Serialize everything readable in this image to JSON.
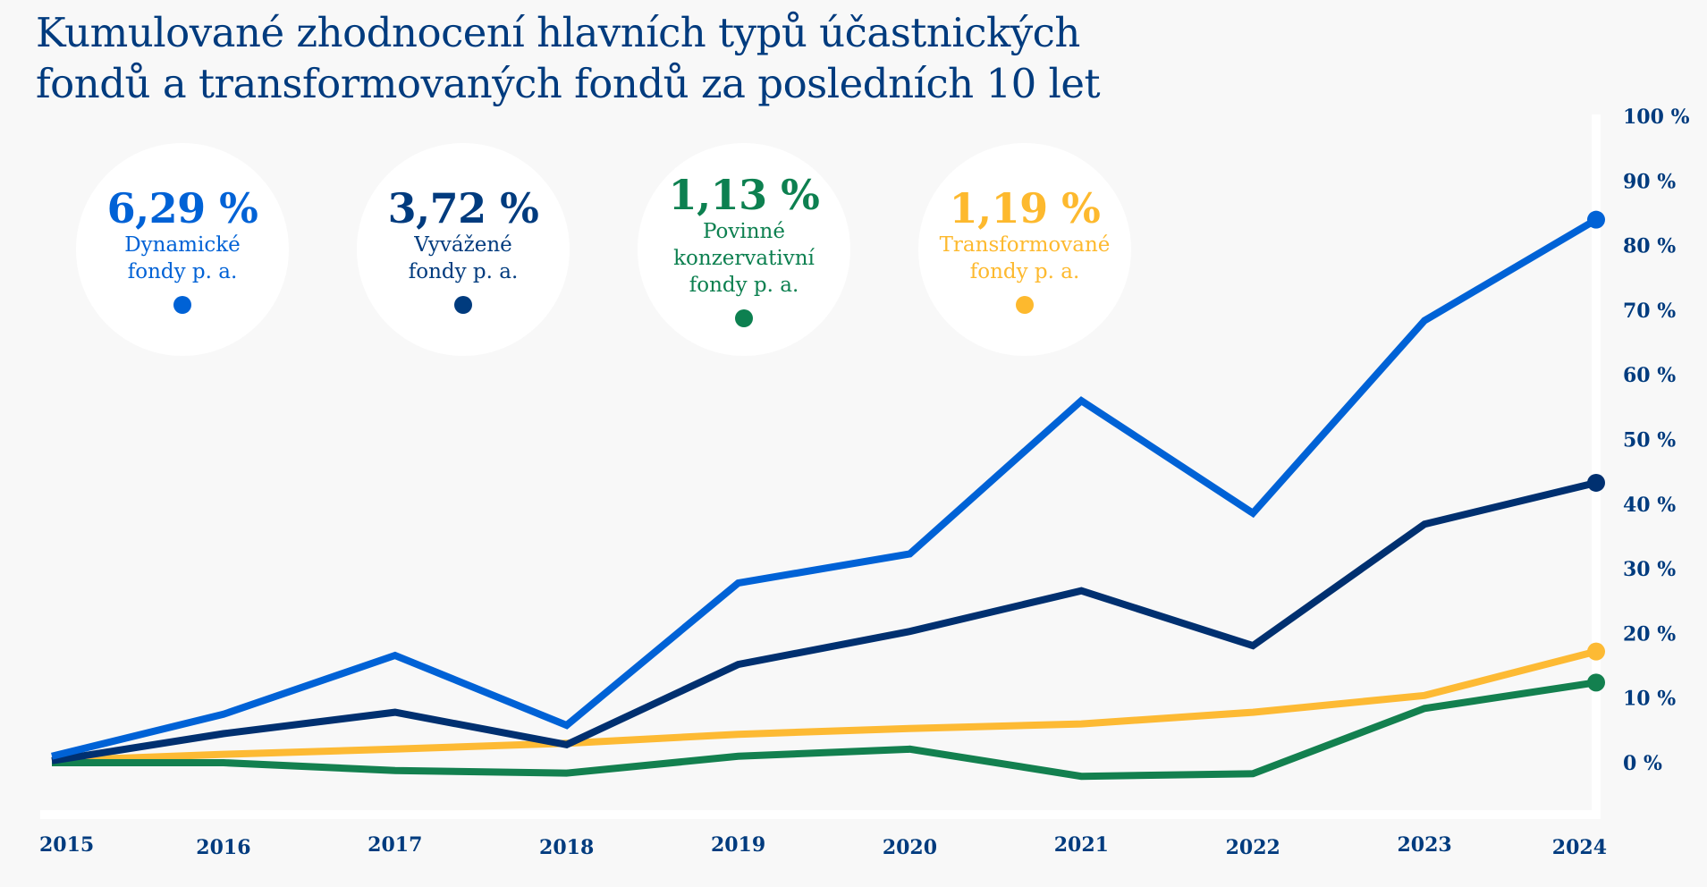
{
  "title_lines": [
    "Kumulované zhodnocení hlavních typů účastnických",
    "fondů a transformovaných fondů za posledních 10 let"
  ],
  "summary": [
    {
      "value": "6,29 %",
      "label_lines": [
        "Dynamické",
        "fondy p. a."
      ],
      "color": "#0062d6"
    },
    {
      "value": "3,72 %",
      "label_lines": [
        "Vyvážené",
        "fondy p. a."
      ],
      "color": "#003b7e"
    },
    {
      "value": "1,13 %",
      "label_lines": [
        "Povinné",
        "konzervativní",
        "fondy p. a."
      ],
      "color": "#0d8050"
    },
    {
      "value": "1,19 %",
      "label_lines": [
        "Transformované",
        "fondy p. a."
      ],
      "color": "#fdb92e"
    }
  ],
  "chart_data": {
    "type": "line",
    "title": "Kumulované zhodnocení hlavních typů účastnických fondů a transformovaných fondů za posledních 10 let",
    "xlabel": "",
    "ylabel": "",
    "x": [
      "2015",
      "2016",
      "2017",
      "2018",
      "2019",
      "2020",
      "2021",
      "2022",
      "2023",
      "2024"
    ],
    "ylim": [
      0,
      100
    ],
    "yticks": [
      0,
      10,
      20,
      30,
      40,
      50,
      60,
      70,
      80,
      90,
      100
    ],
    "ytick_labels": [
      "0 %",
      "10 %",
      "20 %",
      "30 %",
      "40 %",
      "50 %",
      "60 %",
      "70 %",
      "80 %",
      "90 %",
      "100 %"
    ],
    "y_axis_position": "right",
    "grid": false,
    "series": [
      {
        "name": "Dynamické fondy",
        "color": "#0062d6",
        "values": [
          1.0,
          7.5,
          16.6,
          5.8,
          27.8,
          32.3,
          56.0,
          38.6,
          68.4,
          84.0
        ]
      },
      {
        "name": "Vyvážené fondy",
        "color": "#003070",
        "values": [
          0.3,
          4.5,
          7.8,
          2.8,
          15.2,
          20.3,
          26.6,
          18.1,
          36.9,
          43.3
        ]
      },
      {
        "name": "Povinné konzervativní fondy",
        "color": "#13804f",
        "values": [
          0.0,
          0.0,
          -1.2,
          -1.6,
          1.0,
          2.1,
          -2.1,
          -1.7,
          8.4,
          12.4
        ]
      },
      {
        "name": "Transformované fondy",
        "color": "#fdba34",
        "values": [
          0.3,
          1.3,
          2.1,
          3.0,
          4.4,
          5.3,
          6.0,
          7.8,
          10.4,
          17.2
        ]
      }
    ]
  }
}
